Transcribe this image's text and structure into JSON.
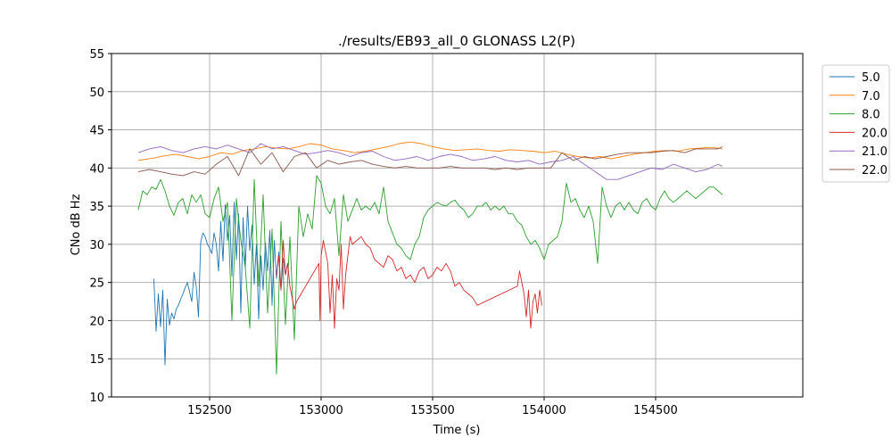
{
  "chart_data": {
    "type": "line",
    "title": "./results/EB93_all_0 GLONASS L2(P)",
    "xlabel": "Time (s)",
    "ylabel": "CNo dB Hz",
    "xlim": [
      152060,
      155160
    ],
    "ylim": [
      10,
      55
    ],
    "xticks": [
      152500,
      153000,
      153500,
      154000,
      154500
    ],
    "yticks": [
      10,
      15,
      20,
      25,
      30,
      35,
      40,
      45,
      50,
      55
    ],
    "grid": true,
    "legend_position": "outside-right",
    "series": [
      {
        "name": "5.0",
        "color": "#1f77b4",
        "segments": [
          {
            "x": [
              152250,
              152260,
              152270,
              152280,
              152290,
              152300,
              152310,
              152320,
              152330,
              152340,
              152350,
              152360,
              152370,
              152380,
              152390,
              152400,
              152410,
              152420,
              152430,
              152440,
              152450,
              152460,
              152470,
              152480,
              152490,
              152500,
              152510,
              152520,
              152530,
              152540,
              152550,
              152560,
              152570,
              152580,
              152590,
              152600,
              152610,
              152620,
              152630,
              152640,
              152650,
              152660,
              152670,
              152680,
              152690,
              152700,
              152710,
              152720,
              152730,
              152740,
              152750,
              152760,
              152770,
              152780,
              152790,
              152800,
              152810,
              152820,
              152830,
              152840,
              152850
            ],
            "y": [
              25.5,
              18.6,
              23.5,
              19.2,
              24.0,
              14.2,
              22.8,
              19.4,
              21.0,
              20.2,
              21.5,
              22.0,
              22.8,
              23.5,
              24.3,
              25.0,
              23.8,
              22.5,
              26.3,
              24.5,
              20.5,
              30.3,
              31.5,
              31.0,
              30.0,
              29.5,
              28.8,
              31.5,
              30.0,
              26.5,
              33.0,
              27.8,
              35.2,
              30.5,
              33.8,
              25.8,
              35.5,
              28.0,
              34.0,
              21.0,
              33.5,
              26.8,
              35.0,
              29.2,
              32.5,
              24.8,
              30.0,
              20.2,
              28.5,
              24.0,
              30.2,
              26.5,
              31.8,
              22.0,
              30.5,
              25.5,
              29.0,
              24.0,
              28.2,
              26.0,
              27.5
            ]
          }
        ]
      },
      {
        "name": "7.0",
        "color": "#ff7f0e",
        "segments": [
          {
            "x": [
              152180,
              152250,
              152300,
              152350,
              152400,
              152450,
              152500,
              152550,
              152600,
              152650,
              152700,
              152750,
              152800,
              152850,
              152900,
              152950,
              153000,
              153050,
              153100,
              153150,
              153200,
              153250,
              153300,
              153350,
              153400,
              153450,
              153500,
              153550,
              153600,
              153650,
              153700,
              153750,
              153800,
              153850,
              153900,
              153950,
              154000,
              154050,
              154100,
              154150,
              154200,
              154250,
              154300,
              154350,
              154400,
              154450,
              154500,
              154550,
              154600,
              154650,
              154700,
              154750,
              154800
            ],
            "y": [
              41.0,
              41.3,
              41.6,
              41.8,
              41.5,
              41.2,
              41.5,
              42.0,
              41.8,
              42.3,
              42.5,
              42.8,
              42.6,
              42.5,
              42.8,
              43.2,
              43.0,
              42.5,
              42.3,
              42.0,
              42.2,
              42.5,
              42.8,
              43.2,
              43.4,
              43.2,
              42.8,
              42.5,
              42.3,
              42.4,
              42.5,
              42.3,
              42.2,
              42.4,
              42.3,
              42.2,
              42.0,
              42.2,
              41.8,
              41.5,
              41.3,
              41.5,
              41.2,
              41.5,
              41.8,
              42.0,
              42.2,
              42.3,
              42.2,
              42.5,
              42.6,
              42.7,
              42.5
            ]
          }
        ]
      },
      {
        "name": "8.0",
        "color": "#2ca02c",
        "segments": [
          {
            "x": [
              152180,
              152200,
              152220,
              152240,
              152260,
              152280,
              152300,
              152320,
              152340,
              152360,
              152380,
              152400,
              152420,
              152440,
              152460,
              152480,
              152500,
              152520,
              152540,
              152560,
              152580,
              152600,
              152620,
              152640,
              152660,
              152680,
              152700,
              152720,
              152740,
              152760,
              152780,
              152800,
              152820,
              152840,
              152860,
              152880,
              152900,
              152920,
              152940,
              152960,
              152980,
              153000,
              153020,
              153040,
              153060,
              153080,
              153100,
              153120,
              153140,
              153160,
              153180,
              153200,
              153220,
              153240,
              153260,
              153280,
              153300,
              153320,
              153340,
              153360,
              153380,
              153400,
              153420,
              153440,
              153460,
              153480,
              153500,
              153520,
              153540,
              153560,
              153580,
              153600,
              153620,
              153640,
              153660,
              153680,
              153700,
              153720,
              153740,
              153760,
              153780,
              153800,
              153820,
              153840,
              153860,
              153880,
              153900,
              153920,
              153940,
              153960,
              153980,
              154000,
              154020,
              154040,
              154060,
              154080,
              154100,
              154120,
              154140,
              154160,
              154180,
              154200,
              154220,
              154240,
              154260,
              154280,
              154300,
              154320,
              154340,
              154360,
              154380,
              154400,
              154420,
              154440,
              154460,
              154480,
              154500,
              154520,
              154540,
              154560,
              154580,
              154600,
              154620,
              154640,
              154660,
              154680,
              154700,
              154720,
              154740,
              154760,
              154780,
              154800
            ],
            "y": [
              34.5,
              37.0,
              36.5,
              37.5,
              37.2,
              38.5,
              37.0,
              35.0,
              33.8,
              35.5,
              36.0,
              34.0,
              36.5,
              35.5,
              36.5,
              34.0,
              33.5,
              36.0,
              37.5,
              33.0,
              35.5,
              20.0,
              36.0,
              30.5,
              27.0,
              19.0,
              38.5,
              24.5,
              36.5,
              21.0,
              32.0,
              13.0,
              33.0,
              19.5,
              31.0,
              17.5,
              35.0,
              31.0,
              34.0,
              32.0,
              39.0,
              38.0,
              35.0,
              34.0,
              36.0,
              28.5,
              36.5,
              33.0,
              34.5,
              36.0,
              34.5,
              35.0,
              34.5,
              35.5,
              34.0,
              37.5,
              33.0,
              31.5,
              30.0,
              29.5,
              28.5,
              28.0,
              30.0,
              31.0,
              33.5,
              34.5,
              35.0,
              35.5,
              35.2,
              35.0,
              35.5,
              35.8,
              35.0,
              34.5,
              33.5,
              34.0,
              35.0,
              35.0,
              35.5,
              34.5,
              35.0,
              34.5,
              35.0,
              34.0,
              34.0,
              33.0,
              32.5,
              31.0,
              30.0,
              30.5,
              29.5,
              28.0,
              30.0,
              30.5,
              31.0,
              33.0,
              38.0,
              35.5,
              36.0,
              34.5,
              33.5,
              35.0,
              33.0,
              27.5,
              37.5,
              35.0,
              33.5,
              35.0,
              35.5,
              34.5,
              35.5,
              34.5,
              34.0,
              35.5,
              36.0,
              35.0,
              34.5,
              36.0,
              37.0,
              36.0,
              35.5,
              36.0,
              36.5,
              37.0,
              36.5,
              36.0,
              36.5,
              37.0,
              37.5,
              37.5,
              37.0,
              36.5
            ]
          }
        ]
      },
      {
        "name": "20.0",
        "color": "#d62728",
        "segments": [
          {
            "x": [
              152800,
              152810,
              152820,
              152830,
              152840,
              152850,
              152860,
              152870,
              152880,
              152890
            ],
            "y": [
              25.8,
              28.5,
              24.0,
              30.5,
              26.0,
              27.5,
              24.5,
              23.0,
              21.5,
              22.5
            ]
          },
          {
            "x": [
              152890,
              152990,
              152995,
              153000,
              153010,
              153020,
              153030,
              153040,
              153050,
              153060,
              153070,
              153080,
              153090,
              153100,
              153110,
              153120,
              153130,
              153140,
              153160,
              153180,
              153200,
              153220,
              153240,
              153260,
              153280,
              153300,
              153320,
              153340,
              153360,
              153380,
              153400,
              153420,
              153440,
              153460,
              153480,
              153500,
              153520,
              153540,
              153560,
              153580,
              153600,
              153620,
              153640,
              153660,
              153680,
              153700
            ],
            "y": [
              22.5,
              27.5,
              20.0,
              28.5,
              30.5,
              29.0,
              27.5,
              21.0,
              26.0,
              19.0,
              25.5,
              24.0,
              30.0,
              21.5,
              26.0,
              28.5,
              31.0,
              30.0,
              30.5,
              31.0,
              30.0,
              29.5,
              28.0,
              27.5,
              27.0,
              28.5,
              28.0,
              26.5,
              27.0,
              25.5,
              26.0,
              25.0,
              26.5,
              27.0,
              25.5,
              26.0,
              27.0,
              26.5,
              27.5,
              26.5,
              24.5,
              25.0,
              24.0,
              23.5,
              23.0,
              22.0
            ]
          },
          {
            "x": [
              153700,
              153880,
              153890,
              153900,
              153910,
              153920,
              153930,
              153940,
              153950,
              153960,
              153970,
              153980,
              153990
            ],
            "y": [
              22.0,
              24.5,
              26.5,
              25.0,
              23.5,
              20.5,
              24.0,
              19.0,
              22.5,
              23.5,
              21.0,
              24.0,
              22.0
            ]
          }
        ]
      },
      {
        "name": "21.0",
        "color": "#9467bd",
        "segments": [
          {
            "x": [
              152180,
              152230,
              152280,
              152330,
              152380,
              152430,
              152480,
              152530,
              152580,
              152630,
              152680,
              152730,
              152780,
              152830,
              152880,
              152930,
              152980,
              153030,
              153080,
              153130,
              153180,
              153230,
              153280,
              153330,
              153380,
              153430,
              153480,
              153530,
              153580,
              153630,
              153680,
              153730,
              153780,
              153830,
              153880,
              153930,
              153980,
              154030,
              154080,
              154130,
              154180,
              154230,
              154280,
              154330,
              154380,
              154430,
              154480,
              154530,
              154580,
              154630,
              154680,
              154730,
              154780,
              154800
            ],
            "y": [
              42.0,
              42.5,
              42.8,
              42.3,
              42.0,
              42.5,
              42.8,
              42.5,
              43.0,
              42.5,
              42.0,
              43.2,
              42.5,
              42.8,
              42.3,
              41.8,
              42.0,
              42.3,
              42.0,
              41.5,
              42.0,
              42.2,
              41.5,
              41.0,
              41.2,
              41.5,
              41.0,
              41.5,
              41.8,
              41.5,
              41.0,
              41.2,
              41.5,
              41.0,
              40.8,
              41.0,
              40.5,
              40.8,
              41.0,
              41.5,
              40.5,
              39.5,
              38.5,
              38.5,
              39.0,
              39.5,
              40.0,
              39.8,
              40.5,
              40.0,
              39.5,
              39.8,
              40.5,
              40.2
            ]
          }
        ]
      },
      {
        "name": "22.0",
        "color": "#8c564b",
        "segments": [
          {
            "x": [
              152180,
              152230,
              152280,
              152330,
              152380,
              152430,
              152480,
              152530,
              152580,
              152630,
              152680,
              152730,
              152780,
              152830,
              152880,
              152930,
              152980,
              153030,
              153080,
              153130,
              153180,
              153230,
              153280,
              153330,
              153380,
              153430,
              153480,
              153530,
              153580,
              153630,
              153680,
              153730,
              153780,
              153830,
              153880,
              153930,
              153980,
              154030,
              154080,
              154130,
              154180,
              154230,
              154280,
              154330,
              154380,
              154430,
              154480,
              154530,
              154580,
              154630,
              154680,
              154730,
              154780,
              154800
            ],
            "y": [
              39.5,
              39.8,
              39.5,
              39.2,
              39.0,
              39.5,
              39.2,
              40.5,
              41.5,
              39.0,
              42.5,
              40.5,
              42.0,
              39.5,
              41.5,
              42.0,
              40.0,
              41.0,
              40.5,
              40.8,
              41.0,
              40.5,
              40.2,
              40.0,
              40.2,
              40.0,
              40.0,
              40.0,
              40.2,
              40.0,
              40.0,
              40.0,
              39.8,
              40.0,
              39.8,
              40.0,
              40.0,
              40.0,
              42.0,
              41.0,
              41.5,
              41.2,
              41.5,
              41.8,
              42.0,
              42.0,
              42.0,
              42.2,
              42.3,
              42.0,
              42.5,
              42.5,
              42.5,
              42.8
            ]
          }
        ]
      }
    ]
  }
}
